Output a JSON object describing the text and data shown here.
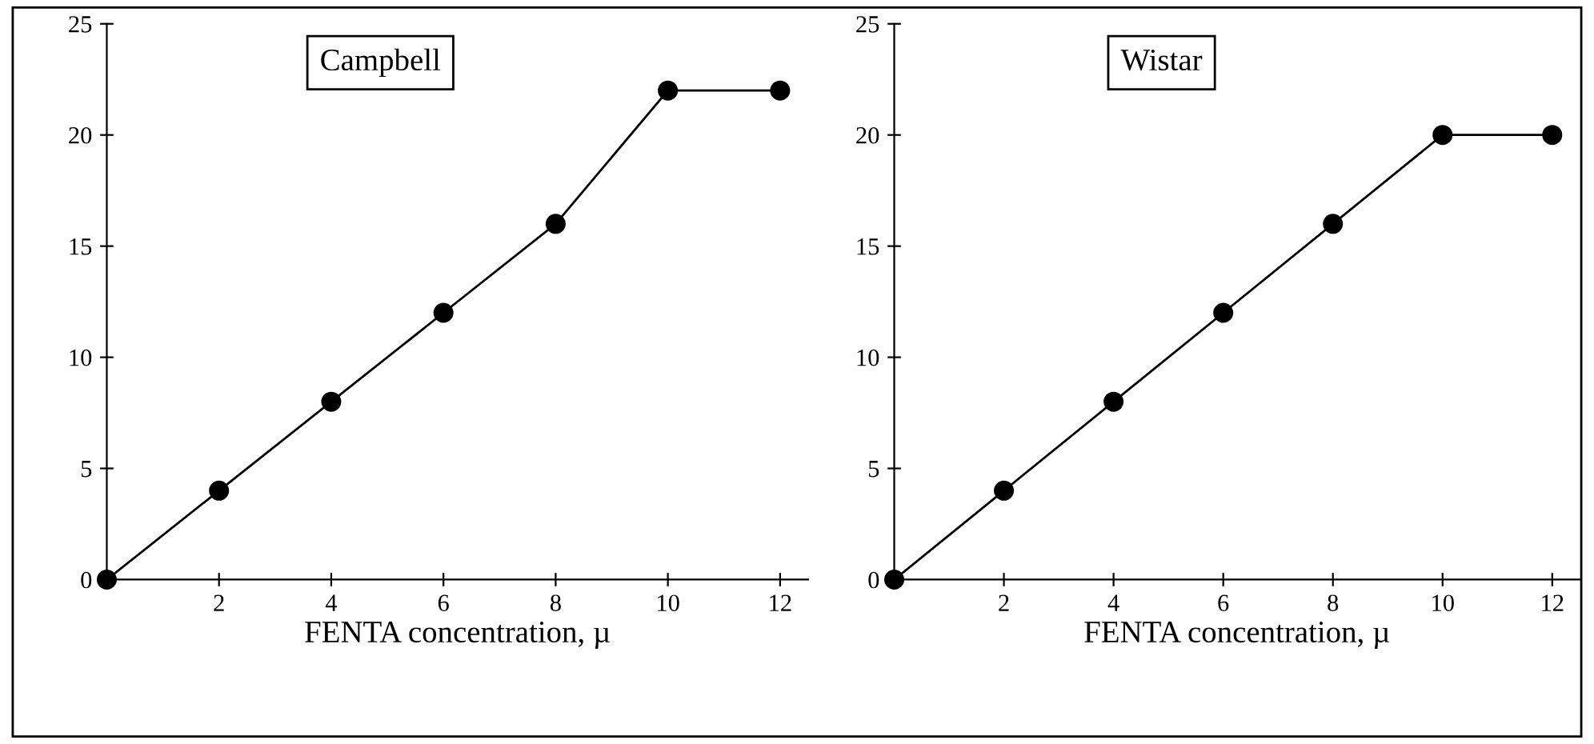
{
  "chart_data": [
    {
      "type": "line",
      "title": "Campbell",
      "xlabel": "FENTA concentration, µ",
      "x": [
        0,
        2,
        4,
        6,
        8,
        10,
        12
      ],
      "series": [
        {
          "color": "#000000",
          "values": [
            0,
            4,
            8,
            12,
            16,
            22,
            22
          ]
        }
      ],
      "xlim": [
        0,
        12.5
      ],
      "ylim": [
        0,
        25
      ],
      "xticks": [
        2,
        4,
        6,
        8,
        10,
        12
      ],
      "yticks": [
        0,
        5,
        10,
        15,
        20,
        25
      ],
      "marker": "circle",
      "line_style": "solid",
      "grid": false,
      "legend": false
    },
    {
      "type": "line",
      "title": "Wistar",
      "xlabel": "FENTA concentration, µ",
      "x": [
        0,
        2,
        4,
        6,
        8,
        10,
        12
      ],
      "series": [
        {
          "color": "#000000",
          "values": [
            0,
            4,
            8,
            12,
            16,
            20,
            20
          ]
        }
      ],
      "xlim": [
        0,
        12.5
      ],
      "ylim": [
        0,
        25
      ],
      "xticks": [
        2,
        4,
        6,
        8,
        10,
        12
      ],
      "yticks": [
        0,
        5,
        10,
        15,
        20,
        25
      ],
      "marker": "circle",
      "line_style": "solid",
      "grid": false,
      "legend": false
    }
  ]
}
